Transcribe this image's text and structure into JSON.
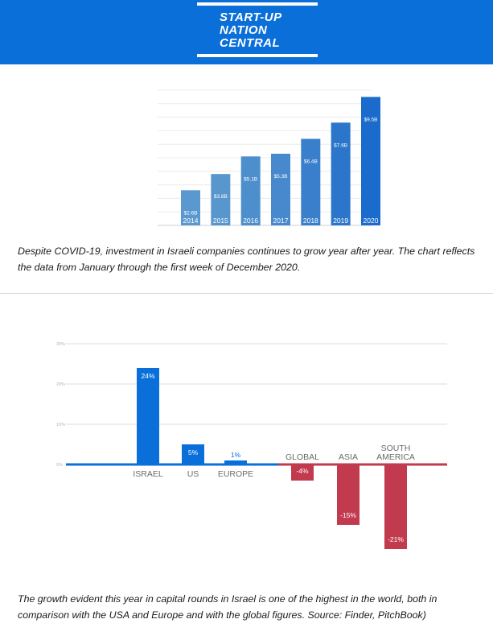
{
  "header": {
    "brand_color": "#0a6fd8",
    "logo_lines": [
      "START-UP",
      "NATION",
      "CENTRAL"
    ]
  },
  "chart_data": [
    {
      "type": "bar",
      "title": "",
      "xlabel": "",
      "ylabel": "",
      "categories": [
        "2014",
        "2015",
        "2016",
        "2017",
        "2018",
        "2019",
        "2020"
      ],
      "values": [
        2.6,
        3.8,
        5.1,
        5.3,
        6.4,
        7.6,
        9.5
      ],
      "value_labels": [
        "$2.6B",
        "$3.8B",
        "$5.1B",
        "$5.3B",
        "$6.4B",
        "$7.6B",
        "$9.5B"
      ],
      "ylim": [
        0,
        10
      ],
      "grid": true,
      "colors": [
        "#5b98cf",
        "#5896ce",
        "#4d8fcd",
        "#4789cc",
        "#3a7fcb",
        "#2b76cb",
        "#1a6bcb"
      ]
    },
    {
      "type": "bar",
      "title": "",
      "xlabel": "",
      "ylabel": "",
      "categories": [
        "ISRAEL",
        "US",
        "EUROPE",
        "GLOBAL",
        "ASIA",
        "SOUTH AMERICA"
      ],
      "category_lines": [
        [
          "ISRAEL"
        ],
        [
          "US"
        ],
        [
          "EUROPE"
        ],
        [
          "GLOBAL"
        ],
        [
          "ASIA"
        ],
        [
          "SOUTH",
          "AMERICA"
        ]
      ],
      "values": [
        24,
        5,
        1,
        -4,
        -15,
        -21
      ],
      "value_labels": [
        "24%",
        "5%",
        "1%",
        "-4%",
        "-15%",
        "-21%"
      ],
      "y_ticks": [
        "30%",
        "20%",
        "10%",
        "0%"
      ],
      "y_tick_values": [
        30,
        20,
        10,
        0
      ],
      "ylim": [
        -25,
        30
      ],
      "grid": true,
      "positive_color": "#0a6fd8",
      "negative_color": "#c23a4e"
    }
  ],
  "captions": {
    "first": "Despite COVID-19, investment in Israeli companies continues to grow year after year. The chart reflects the data from January through the first week of December 2020.",
    "second": "The growth evident this year in capital rounds in Israel is one of the highest in the world, both in comparison with the USA and Europe and with the global figures. Source: Finder, PitchBook)"
  }
}
